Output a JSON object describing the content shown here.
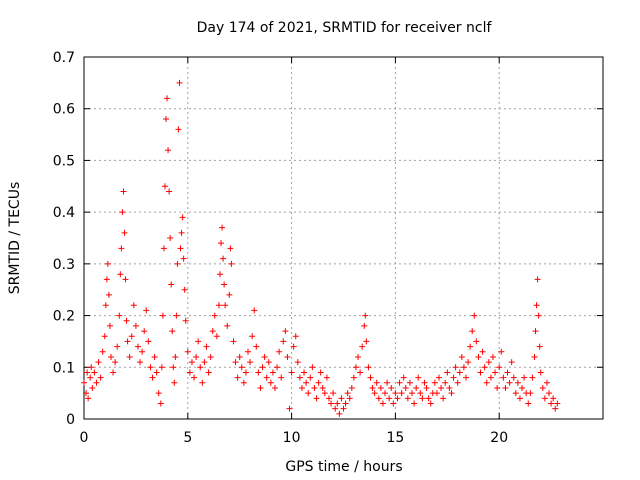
{
  "chart_data": {
    "type": "scatter",
    "title": "Day 174 of 2021, SRMTID for receiver nclf",
    "xlabel": "GPS time / hours",
    "ylabel": "SRMTID / TECUs",
    "xlim": [
      0,
      25
    ],
    "ylim": [
      0,
      0.7
    ],
    "xticks": [
      0,
      5,
      10,
      15,
      20
    ],
    "xtick_labels": [
      "0",
      "5",
      "10",
      "15",
      "20"
    ],
    "yticks": [
      0,
      0.1,
      0.2,
      0.3,
      0.4,
      0.5,
      0.6,
      0.7
    ],
    "ytick_labels": [
      "0",
      "0.1",
      "0.2",
      "0.3",
      "0.4",
      "0.5",
      "0.6",
      "0.7"
    ],
    "grid": true,
    "marker": "+",
    "color": "#ff0000",
    "series": [
      {
        "name": "SRMTID",
        "points": [
          [
            0.0,
            0.07
          ],
          [
            0.1,
            0.05
          ],
          [
            0.15,
            0.09
          ],
          [
            0.2,
            0.04
          ],
          [
            0.3,
            0.08
          ],
          [
            0.35,
            0.1
          ],
          [
            0.4,
            0.06
          ],
          [
            0.5,
            0.09
          ],
          [
            0.6,
            0.07
          ],
          [
            0.7,
            0.11
          ],
          [
            0.8,
            0.08
          ],
          [
            0.9,
            0.13
          ],
          [
            1.0,
            0.16
          ],
          [
            1.05,
            0.22
          ],
          [
            1.1,
            0.27
          ],
          [
            1.15,
            0.3
          ],
          [
            1.2,
            0.24
          ],
          [
            1.25,
            0.18
          ],
          [
            1.3,
            0.12
          ],
          [
            1.4,
            0.09
          ],
          [
            1.5,
            0.11
          ],
          [
            1.6,
            0.14
          ],
          [
            1.7,
            0.2
          ],
          [
            1.75,
            0.28
          ],
          [
            1.8,
            0.33
          ],
          [
            1.85,
            0.4
          ],
          [
            1.9,
            0.44
          ],
          [
            1.95,
            0.36
          ],
          [
            2.0,
            0.27
          ],
          [
            2.05,
            0.19
          ],
          [
            2.1,
            0.15
          ],
          [
            2.2,
            0.12
          ],
          [
            2.3,
            0.16
          ],
          [
            2.4,
            0.22
          ],
          [
            2.5,
            0.18
          ],
          [
            2.6,
            0.14
          ],
          [
            2.7,
            0.11
          ],
          [
            2.8,
            0.13
          ],
          [
            2.9,
            0.17
          ],
          [
            3.0,
            0.21
          ],
          [
            3.1,
            0.15
          ],
          [
            3.2,
            0.1
          ],
          [
            3.3,
            0.08
          ],
          [
            3.4,
            0.12
          ],
          [
            3.5,
            0.09
          ],
          [
            3.6,
            0.05
          ],
          [
            3.7,
            0.03
          ],
          [
            3.75,
            0.1
          ],
          [
            3.8,
            0.2
          ],
          [
            3.85,
            0.33
          ],
          [
            3.9,
            0.45
          ],
          [
            3.95,
            0.58
          ],
          [
            4.0,
            0.62
          ],
          [
            4.05,
            0.52
          ],
          [
            4.1,
            0.44
          ],
          [
            4.15,
            0.35
          ],
          [
            4.2,
            0.26
          ],
          [
            4.25,
            0.17
          ],
          [
            4.3,
            0.1
          ],
          [
            4.35,
            0.07
          ],
          [
            4.4,
            0.12
          ],
          [
            4.45,
            0.2
          ],
          [
            4.5,
            0.3
          ],
          [
            4.55,
            0.56
          ],
          [
            4.6,
            0.65
          ],
          [
            4.65,
            0.33
          ],
          [
            4.7,
            0.36
          ],
          [
            4.75,
            0.39
          ],
          [
            4.8,
            0.31
          ],
          [
            4.85,
            0.25
          ],
          [
            4.9,
            0.19
          ],
          [
            5.0,
            0.13
          ],
          [
            5.1,
            0.09
          ],
          [
            5.2,
            0.11
          ],
          [
            5.3,
            0.08
          ],
          [
            5.4,
            0.12
          ],
          [
            5.5,
            0.15
          ],
          [
            5.6,
            0.1
          ],
          [
            5.7,
            0.07
          ],
          [
            5.8,
            0.11
          ],
          [
            5.9,
            0.14
          ],
          [
            6.0,
            0.09
          ],
          [
            6.1,
            0.12
          ],
          [
            6.2,
            0.17
          ],
          [
            6.3,
            0.2
          ],
          [
            6.4,
            0.16
          ],
          [
            6.5,
            0.22
          ],
          [
            6.55,
            0.28
          ],
          [
            6.6,
            0.34
          ],
          [
            6.65,
            0.37
          ],
          [
            6.7,
            0.31
          ],
          [
            6.75,
            0.26
          ],
          [
            6.8,
            0.22
          ],
          [
            6.9,
            0.18
          ],
          [
            7.0,
            0.24
          ],
          [
            7.05,
            0.33
          ],
          [
            7.1,
            0.3
          ],
          [
            7.2,
            0.15
          ],
          [
            7.3,
            0.11
          ],
          [
            7.4,
            0.08
          ],
          [
            7.5,
            0.12
          ],
          [
            7.6,
            0.1
          ],
          [
            7.7,
            0.07
          ],
          [
            7.8,
            0.09
          ],
          [
            7.9,
            0.13
          ],
          [
            8.0,
            0.11
          ],
          [
            8.1,
            0.16
          ],
          [
            8.2,
            0.21
          ],
          [
            8.3,
            0.14
          ],
          [
            8.4,
            0.09
          ],
          [
            8.5,
            0.06
          ],
          [
            8.6,
            0.1
          ],
          [
            8.7,
            0.12
          ],
          [
            8.8,
            0.08
          ],
          [
            8.9,
            0.11
          ],
          [
            9.0,
            0.07
          ],
          [
            9.1,
            0.09
          ],
          [
            9.2,
            0.06
          ],
          [
            9.3,
            0.1
          ],
          [
            9.4,
            0.13
          ],
          [
            9.5,
            0.08
          ],
          [
            9.6,
            0.15
          ],
          [
            9.7,
            0.17
          ],
          [
            9.8,
            0.12
          ],
          [
            9.9,
            0.02
          ],
          [
            10.0,
            0.09
          ],
          [
            10.1,
            0.14
          ],
          [
            10.2,
            0.16
          ],
          [
            10.3,
            0.11
          ],
          [
            10.4,
            0.08
          ],
          [
            10.5,
            0.06
          ],
          [
            10.6,
            0.09
          ],
          [
            10.7,
            0.07
          ],
          [
            10.8,
            0.05
          ],
          [
            10.9,
            0.08
          ],
          [
            11.0,
            0.1
          ],
          [
            11.1,
            0.06
          ],
          [
            11.2,
            0.04
          ],
          [
            11.3,
            0.07
          ],
          [
            11.4,
            0.09
          ],
          [
            11.5,
            0.06
          ],
          [
            11.6,
            0.05
          ],
          [
            11.7,
            0.08
          ],
          [
            11.8,
            0.04
          ],
          [
            11.9,
            0.03
          ],
          [
            12.0,
            0.05
          ],
          [
            12.1,
            0.02
          ],
          [
            12.2,
            0.03
          ],
          [
            12.3,
            0.01
          ],
          [
            12.4,
            0.04
          ],
          [
            12.5,
            0.02
          ],
          [
            12.6,
            0.03
          ],
          [
            12.7,
            0.05
          ],
          [
            12.8,
            0.04
          ],
          [
            12.9,
            0.06
          ],
          [
            13.0,
            0.08
          ],
          [
            13.1,
            0.1
          ],
          [
            13.2,
            0.12
          ],
          [
            13.3,
            0.09
          ],
          [
            13.4,
            0.14
          ],
          [
            13.5,
            0.18
          ],
          [
            13.55,
            0.2
          ],
          [
            13.6,
            0.15
          ],
          [
            13.7,
            0.1
          ],
          [
            13.8,
            0.08
          ],
          [
            13.9,
            0.06
          ],
          [
            14.0,
            0.05
          ],
          [
            14.1,
            0.07
          ],
          [
            14.2,
            0.04
          ],
          [
            14.3,
            0.06
          ],
          [
            14.4,
            0.03
          ],
          [
            14.5,
            0.05
          ],
          [
            14.6,
            0.07
          ],
          [
            14.7,
            0.04
          ],
          [
            14.8,
            0.06
          ],
          [
            14.9,
            0.03
          ],
          [
            15.0,
            0.05
          ],
          [
            15.1,
            0.04
          ],
          [
            15.2,
            0.07
          ],
          [
            15.3,
            0.05
          ],
          [
            15.4,
            0.08
          ],
          [
            15.5,
            0.06
          ],
          [
            15.6,
            0.04
          ],
          [
            15.7,
            0.07
          ],
          [
            15.8,
            0.05
          ],
          [
            15.9,
            0.03
          ],
          [
            16.0,
            0.06
          ],
          [
            16.1,
            0.08
          ],
          [
            16.2,
            0.05
          ],
          [
            16.3,
            0.04
          ],
          [
            16.4,
            0.07
          ],
          [
            16.5,
            0.06
          ],
          [
            16.6,
            0.04
          ],
          [
            16.7,
            0.03
          ],
          [
            16.8,
            0.05
          ],
          [
            16.9,
            0.07
          ],
          [
            17.0,
            0.05
          ],
          [
            17.1,
            0.08
          ],
          [
            17.2,
            0.06
          ],
          [
            17.3,
            0.04
          ],
          [
            17.4,
            0.07
          ],
          [
            17.5,
            0.09
          ],
          [
            17.6,
            0.06
          ],
          [
            17.7,
            0.05
          ],
          [
            17.8,
            0.08
          ],
          [
            17.9,
            0.1
          ],
          [
            18.0,
            0.07
          ],
          [
            18.1,
            0.09
          ],
          [
            18.2,
            0.12
          ],
          [
            18.3,
            0.1
          ],
          [
            18.4,
            0.08
          ],
          [
            18.5,
            0.11
          ],
          [
            18.6,
            0.14
          ],
          [
            18.7,
            0.17
          ],
          [
            18.8,
            0.2
          ],
          [
            18.9,
            0.15
          ],
          [
            19.0,
            0.12
          ],
          [
            19.1,
            0.09
          ],
          [
            19.2,
            0.13
          ],
          [
            19.3,
            0.1
          ],
          [
            19.4,
            0.07
          ],
          [
            19.5,
            0.11
          ],
          [
            19.6,
            0.08
          ],
          [
            19.7,
            0.12
          ],
          [
            19.8,
            0.09
          ],
          [
            19.9,
            0.06
          ],
          [
            20.0,
            0.1
          ],
          [
            20.1,
            0.13
          ],
          [
            20.2,
            0.08
          ],
          [
            20.3,
            0.06
          ],
          [
            20.4,
            0.09
          ],
          [
            20.5,
            0.07
          ],
          [
            20.6,
            0.11
          ],
          [
            20.7,
            0.08
          ],
          [
            20.8,
            0.05
          ],
          [
            20.9,
            0.07
          ],
          [
            21.0,
            0.04
          ],
          [
            21.1,
            0.06
          ],
          [
            21.2,
            0.08
          ],
          [
            21.3,
            0.05
          ],
          [
            21.4,
            0.03
          ],
          [
            21.5,
            0.05
          ],
          [
            21.6,
            0.08
          ],
          [
            21.7,
            0.12
          ],
          [
            21.75,
            0.17
          ],
          [
            21.8,
            0.22
          ],
          [
            21.85,
            0.27
          ],
          [
            21.9,
            0.2
          ],
          [
            21.95,
            0.14
          ],
          [
            22.0,
            0.09
          ],
          [
            22.1,
            0.06
          ],
          [
            22.2,
            0.04
          ],
          [
            22.3,
            0.07
          ],
          [
            22.4,
            0.05
          ],
          [
            22.5,
            0.03
          ],
          [
            22.6,
            0.04
          ],
          [
            22.7,
            0.02
          ],
          [
            22.8,
            0.03
          ]
        ]
      }
    ]
  }
}
